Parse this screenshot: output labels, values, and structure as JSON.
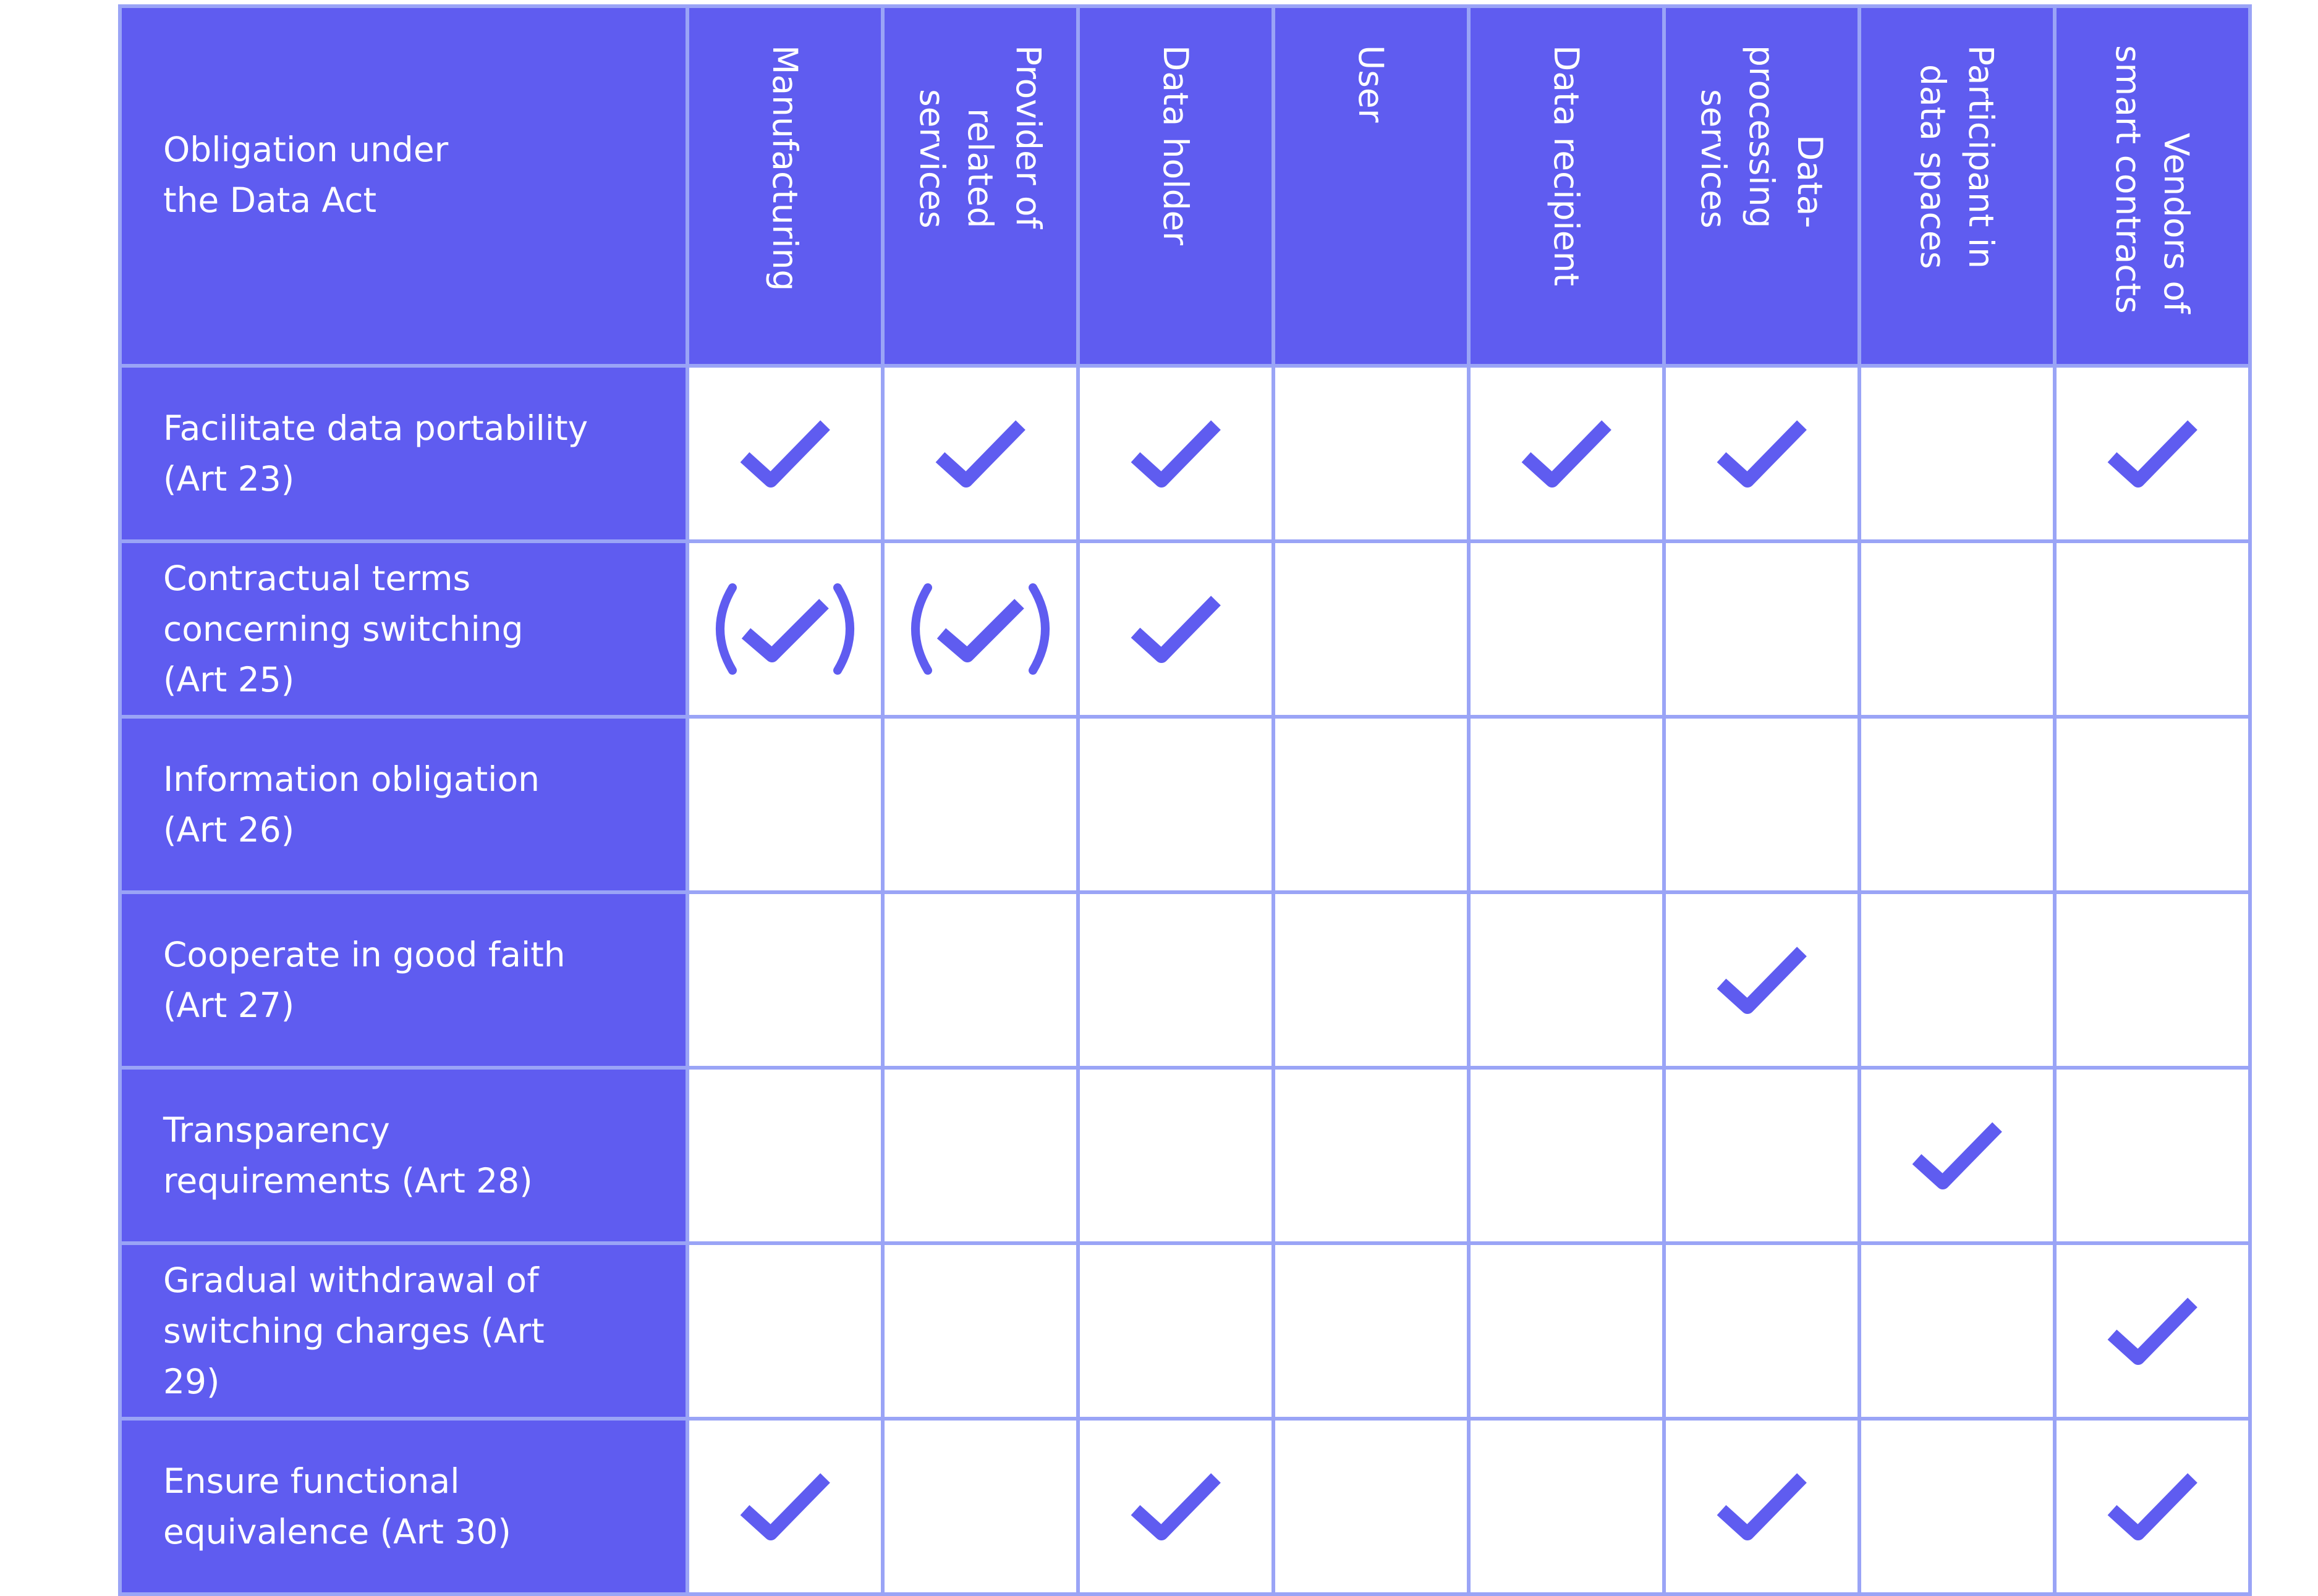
{
  "corner_label": "Obligation under\nthe Data Act",
  "columns": [
    "Manufacturing",
    "Provider of\nrelated\nservices",
    "Data holder",
    "User",
    "Data recipient",
    "Data-\nprocessing\nservices",
    "Participant in\ndata spaces",
    "Vendors of\nsmart contracts"
  ],
  "rows": [
    {
      "label": "Facilitate data portability\n(Art 23)",
      "marks": [
        "check",
        "check",
        "check",
        "none",
        "check",
        "check",
        "none",
        "check"
      ]
    },
    {
      "label": " Contractual terms\nconcerning switching\n(Art 25)",
      "marks": [
        "partial",
        "partial",
        "check",
        "none",
        "none",
        "none",
        "none",
        "none"
      ]
    },
    {
      "label": "Information obligation\n(Art 26)",
      "marks": [
        "none",
        "none",
        "none",
        "none",
        "none",
        "none",
        "none",
        "none"
      ]
    },
    {
      "label": "Cooperate in good faith\n(Art 27)",
      "marks": [
        "none",
        "none",
        "none",
        "none",
        "none",
        "check",
        "none",
        "none"
      ]
    },
    {
      "label": "Transparency\nrequirements  (Art 28)",
      "marks": [
        "none",
        "none",
        "none",
        "none",
        "none",
        "none",
        "check",
        "none"
      ]
    },
    {
      "label": "Gradual withdrawal of\nswitching charges (Art\n29)",
      "marks": [
        "none",
        "none",
        "none",
        "none",
        "none",
        "none",
        "none",
        "check"
      ]
    },
    {
      "label": "Ensure functional\nequivalence (Art 30)",
      "marks": [
        "check",
        "none",
        "check",
        "none",
        "none",
        "check",
        "none",
        "check"
      ]
    }
  ],
  "colors": {
    "header_bg": "#5f5cf0",
    "grid_line": "#9aa4f6",
    "check_color": "#5f5cf0",
    "cell_bg": "#ffffff"
  },
  "mark_legend": {
    "check": "checkmark-icon",
    "partial": "parenthesized-checkmark-icon",
    "none": "empty"
  }
}
